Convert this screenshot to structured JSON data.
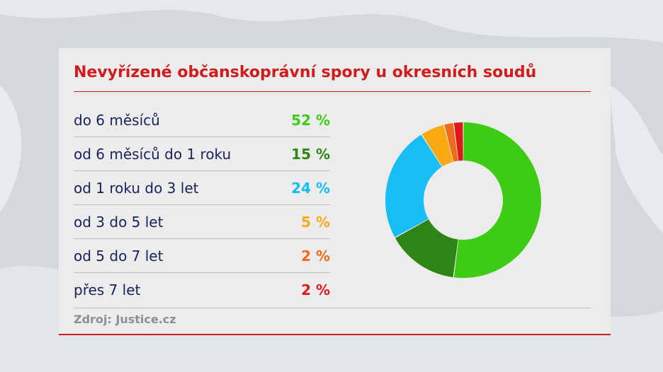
{
  "chart_data": {
    "type": "pie",
    "title": "Nevyřízené občanskoprávní spory u okresních soudů",
    "source": "Zdroj: Justice.cz",
    "donut": true,
    "slices": [
      {
        "label": "do 6 měsíců",
        "value": 52,
        "display": "52 %",
        "color": "#3ccc14"
      },
      {
        "label": "od 6 měsíců do 1 roku",
        "value": 15,
        "display": "15 %",
        "color": "#2e8516"
      },
      {
        "label": "od 1 roku do 3 let",
        "value": 24,
        "display": "24 %",
        "color": "#17bdf5"
      },
      {
        "label": "od 3 do 5 let",
        "value": 5,
        "display": "5 %",
        "color": "#f8a810"
      },
      {
        "label": "od 5 do 7 let",
        "value": 2,
        "display": "2 %",
        "color": "#f06a1a"
      },
      {
        "label": "přes 7 let",
        "value": 2,
        "display": "2 %",
        "color": "#e01818"
      }
    ]
  },
  "colors": {
    "accent": "#d01c1c",
    "label_text": "#16235a",
    "card_background": "#ececed"
  }
}
